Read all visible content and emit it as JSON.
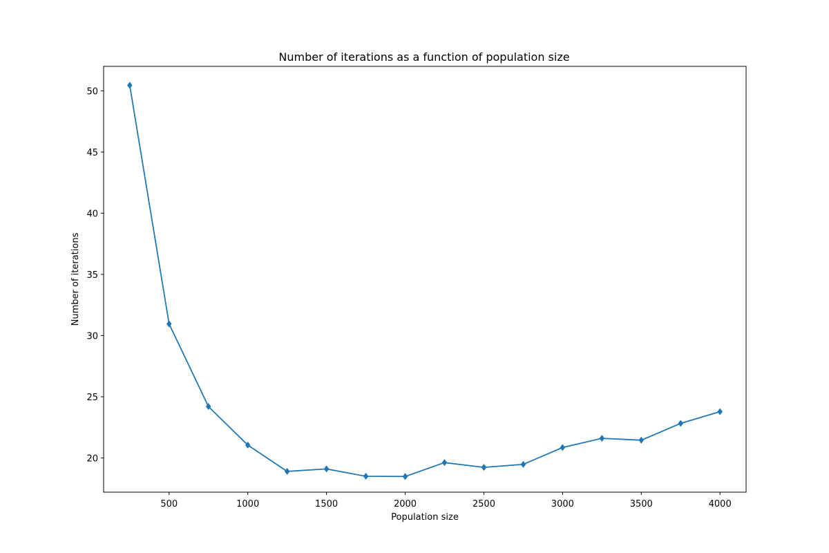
{
  "chart_data": {
    "type": "line",
    "title": "Number of iterations as a function of population size",
    "xlabel": "Population size",
    "ylabel": "Number of iterations",
    "xlim": [
      84,
      4166
    ],
    "ylim": [
      17.2,
      52.0
    ],
    "xticks": [
      500,
      1000,
      1500,
      2000,
      2500,
      3000,
      3500,
      4000
    ],
    "yticks": [
      20,
      25,
      30,
      35,
      40,
      45,
      50
    ],
    "grid": false,
    "legend": "none",
    "marker": "diamond",
    "color": "#1f77b4",
    "series": [
      {
        "x": [
          250,
          500,
          750,
          1000,
          1250,
          1500,
          1750,
          2000,
          2250,
          2500,
          2750,
          3000,
          3250,
          3500,
          3750,
          4000
        ],
        "values": [
          50.45,
          30.95,
          24.2,
          21.05,
          18.9,
          19.1,
          18.5,
          18.48,
          19.62,
          19.23,
          19.47,
          20.85,
          21.6,
          21.45,
          22.82,
          23.78
        ]
      }
    ]
  }
}
